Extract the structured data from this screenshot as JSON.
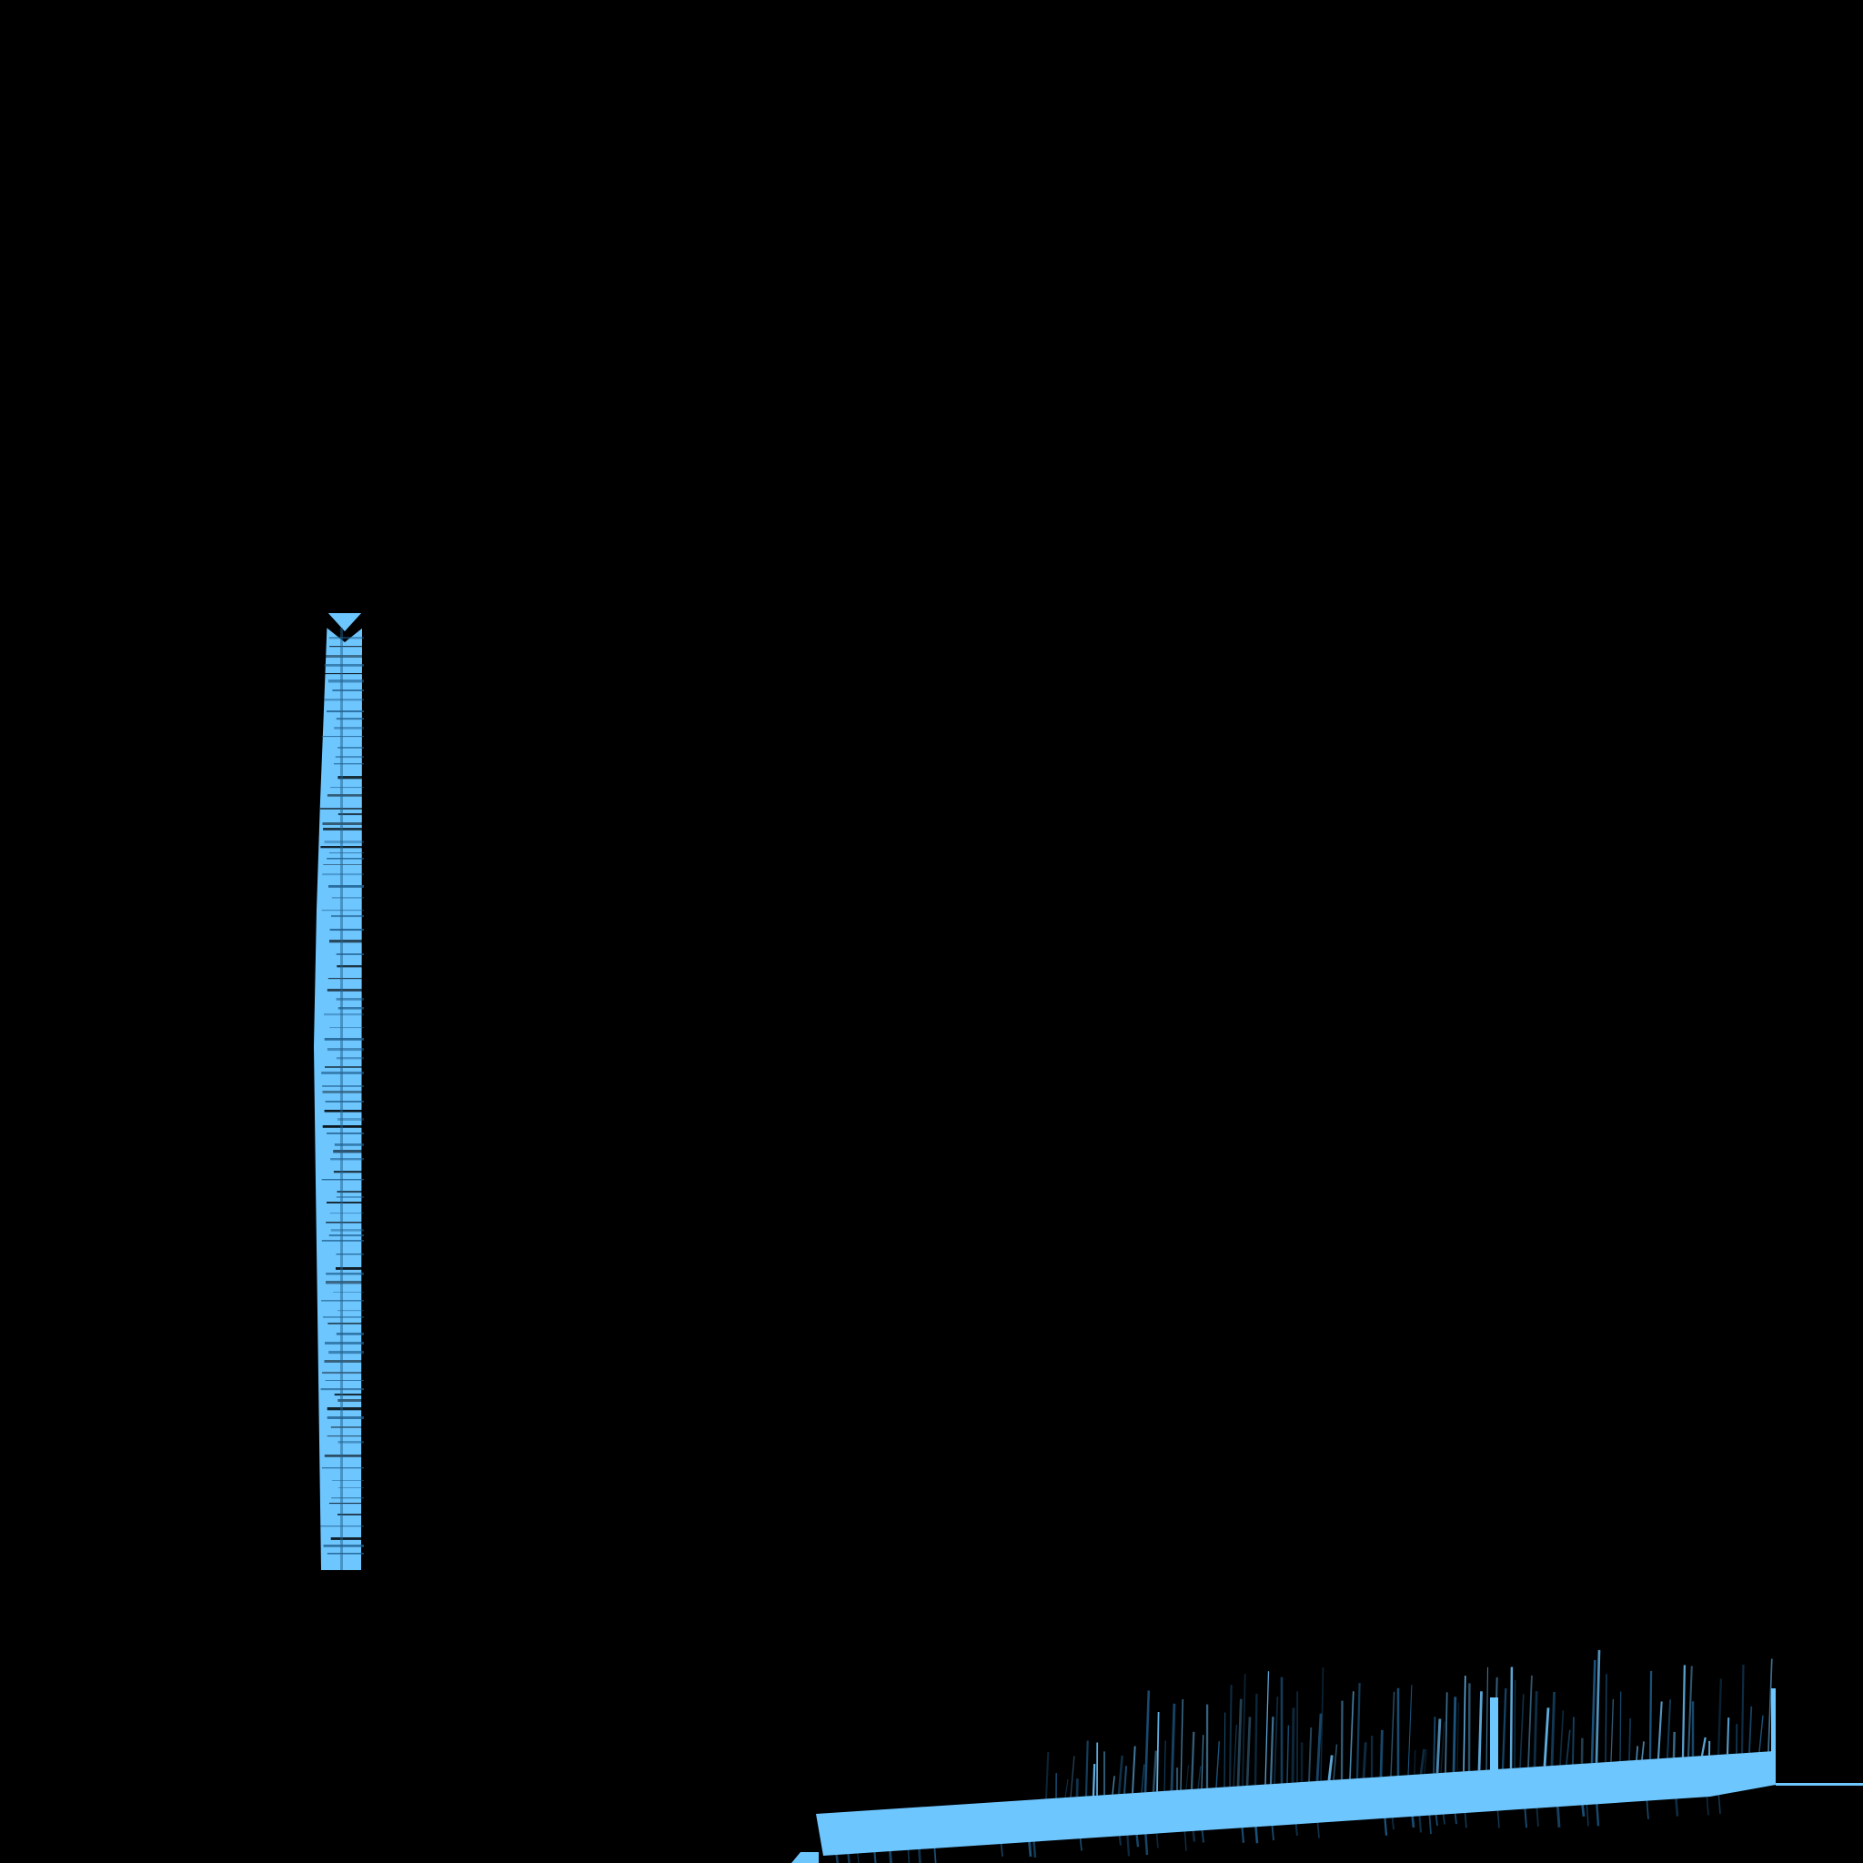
{
  "scene": {
    "background_color": "#000000",
    "accent_color": "#6ec6ff",
    "shadow_color": "#1f5f8e",
    "elements": [
      {
        "name": "vertical-blue-bar"
      },
      {
        "name": "horizontal-blue-bar"
      }
    ]
  }
}
